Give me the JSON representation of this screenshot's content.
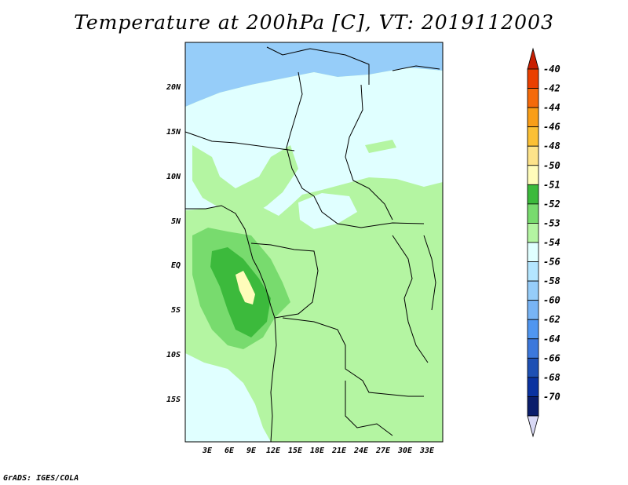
{
  "title": "Temperature at 200hPa [C], VT: 2019112003",
  "footer": "GrADS: IGES/COLA",
  "map": {
    "lat_labels": [
      "20N",
      "15N",
      "10N",
      "5N",
      "EQ",
      "5S",
      "10S",
      "15S"
    ],
    "lon_labels": [
      "3E",
      "6E",
      "9E",
      "12E",
      "15E",
      "18E",
      "21E",
      "24E",
      "27E",
      "30E",
      "33E"
    ]
  },
  "colorbar": {
    "labels": [
      "-40",
      "-42",
      "-44",
      "-46",
      "-48",
      "-50",
      "-51",
      "-52",
      "-53",
      "-54",
      "-56",
      "-58",
      "-60",
      "-62",
      "-64",
      "-66",
      "-68",
      "-70"
    ],
    "colors": [
      "#c81e00",
      "#ea4000",
      "#f56a0a",
      "#f99e18",
      "#fbc035",
      "#fde38a",
      "#fffcba",
      "#3cba3c",
      "#78db6e",
      "#b4f5a2",
      "#e0ffff",
      "#b4e6ff",
      "#96cdf9",
      "#78b4f5",
      "#5096f0",
      "#3c78dc",
      "#1e50b4",
      "#0a32a0",
      "#0a1d6b",
      "#d8d8f5"
    ]
  }
}
